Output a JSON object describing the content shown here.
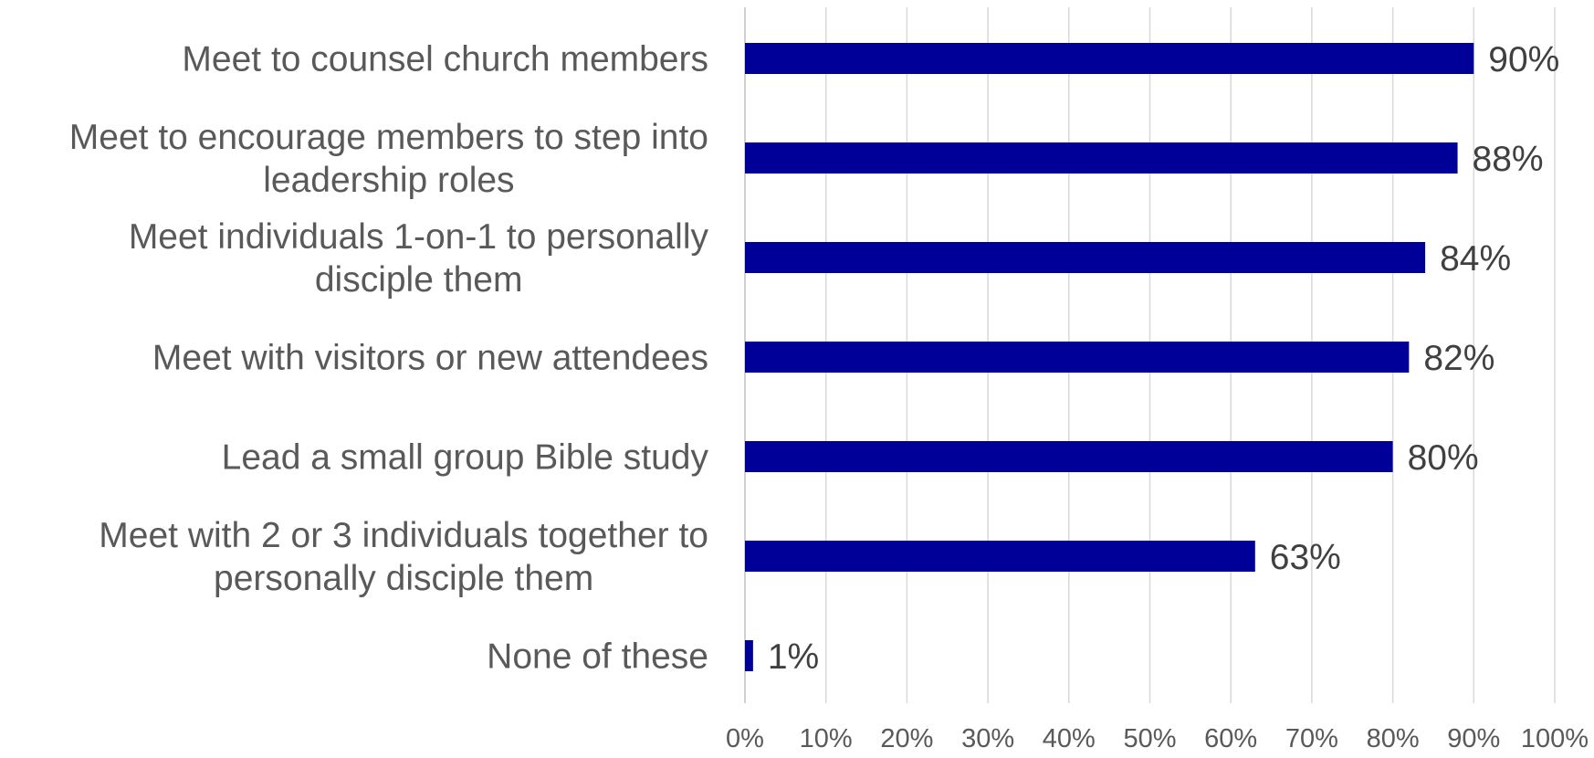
{
  "chart_data": {
    "type": "bar",
    "orientation": "horizontal",
    "title": "",
    "xlabel": "",
    "ylabel": "",
    "xlim": [
      0,
      100
    ],
    "x_ticks": [
      "0%",
      "10%",
      "20%",
      "30%",
      "40%",
      "50%",
      "60%",
      "70%",
      "80%",
      "90%",
      "100%"
    ],
    "grid": "vertical",
    "legend": "none",
    "bar_color": "#000099",
    "categories": [
      [
        "Meet to counsel church members"
      ],
      [
        "Meet to encourage members to step into",
        "leadership roles"
      ],
      [
        "Meet individuals 1-on-1 to personally",
        "disciple them"
      ],
      [
        "Meet with visitors or new attendees"
      ],
      [
        "Lead a small group Bible study"
      ],
      [
        "Meet with 2 or 3 individuals together to",
        "personally disciple them"
      ],
      [
        "None of these"
      ]
    ],
    "values": [
      90,
      88,
      84,
      82,
      80,
      63,
      1
    ],
    "data_labels": [
      "90%",
      "88%",
      "84%",
      "82%",
      "80%",
      "63%",
      "1%"
    ]
  }
}
